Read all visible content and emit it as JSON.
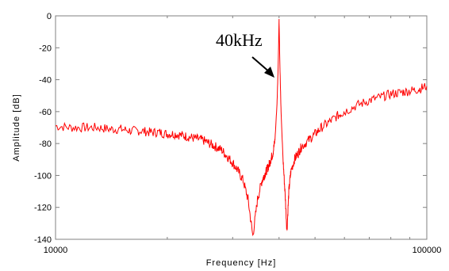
{
  "chart_data": {
    "type": "line",
    "xlabel": "Frequency [Hz]",
    "ylabel": "Amplitude [dB]",
    "x_scale": "log",
    "xlim": [
      10000,
      100000
    ],
    "ylim": [
      -140,
      0
    ],
    "x_ticks": [
      "10000",
      "100000"
    ],
    "y_ticks": [
      "0",
      "-20",
      "-40",
      "-60",
      "-80",
      "-100",
      "-120",
      "-140"
    ],
    "grid": false,
    "legend": "none",
    "annotation": {
      "text": "40kHz",
      "x": 40000,
      "y": -40
    },
    "series": [
      {
        "color": "#ff0000",
        "x": [
          10000,
          11000,
          12000,
          13000,
          14000,
          15000,
          16000,
          17000,
          18000,
          19000,
          20000,
          21000,
          22000,
          23000,
          24000,
          25000,
          26000,
          27000,
          28000,
          29000,
          30000,
          31000,
          32000,
          33000,
          34000,
          35000,
          36000,
          36500,
          37000,
          37500,
          38000,
          38500,
          39000,
          39500,
          39800,
          40000,
          40200,
          40500,
          41000,
          41500,
          42000,
          42500,
          43000,
          44000,
          45000,
          46000,
          48000,
          50000,
          52000,
          55000,
          58000,
          60000,
          65000,
          70000,
          75000,
          80000,
          85000,
          90000,
          95000,
          100000
        ],
        "y": [
          -69,
          -70,
          -70,
          -70,
          -71,
          -71,
          -72,
          -72,
          -73,
          -73,
          -74,
          -74,
          -75,
          -76,
          -77,
          -78,
          -80,
          -82,
          -84,
          -88,
          -92,
          -97,
          -103,
          -115,
          -138,
          -115,
          -103,
          -100,
          -97,
          -94,
          -90,
          -86,
          -78,
          -55,
          -30,
          -2,
          -30,
          -60,
          -90,
          -110,
          -135,
          -110,
          -98,
          -90,
          -86,
          -82,
          -78,
          -74,
          -70,
          -66,
          -62,
          -60,
          -56,
          -53,
          -51,
          -49,
          -48,
          -47,
          -46,
          -44
        ]
      }
    ]
  }
}
